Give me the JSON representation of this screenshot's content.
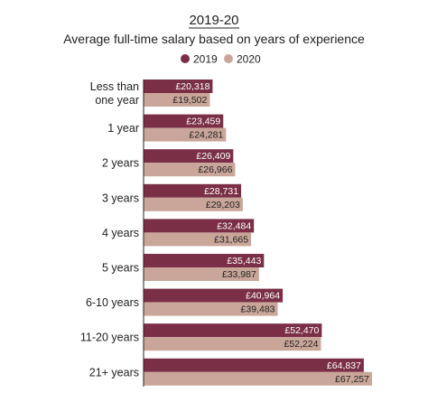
{
  "chart_data": {
    "type": "bar",
    "orientation": "horizontal",
    "title": "2019-20",
    "subtitle": "Average full-time salary based on years of experience",
    "legend_position": "top",
    "categories": [
      [
        "Less than",
        "one year"
      ],
      [
        "1 year"
      ],
      [
        "2 years"
      ],
      [
        "3 years"
      ],
      [
        "4 years"
      ],
      [
        "5 years"
      ],
      [
        "6-10 years"
      ],
      [
        "11-20 years"
      ],
      [
        "21+ years"
      ]
    ],
    "series": [
      {
        "name": "2019",
        "color": "#7a2f47",
        "label_color": "#ffffff",
        "values": [
          20318,
          23459,
          26409,
          28731,
          32484,
          35443,
          40964,
          52470,
          64837
        ],
        "labels": [
          "£20,318",
          "£23,459",
          "£26,409",
          "£28,731",
          "£32,484",
          "£35,443",
          "£40,964",
          "£52,470",
          "£64,837"
        ]
      },
      {
        "name": "2020",
        "color": "#c9a699",
        "label_color": "#222222",
        "values": [
          19502,
          24281,
          26966,
          29203,
          31665,
          33987,
          39483,
          52224,
          67257
        ],
        "labels": [
          "£19,502",
          "£24,281",
          "£26,966",
          "£29,203",
          "£31,665",
          "£33,987",
          "£39,483",
          "£52,224",
          "£67,257"
        ]
      }
    ],
    "xlim": [
      0,
      67257
    ],
    "grid": false
  }
}
